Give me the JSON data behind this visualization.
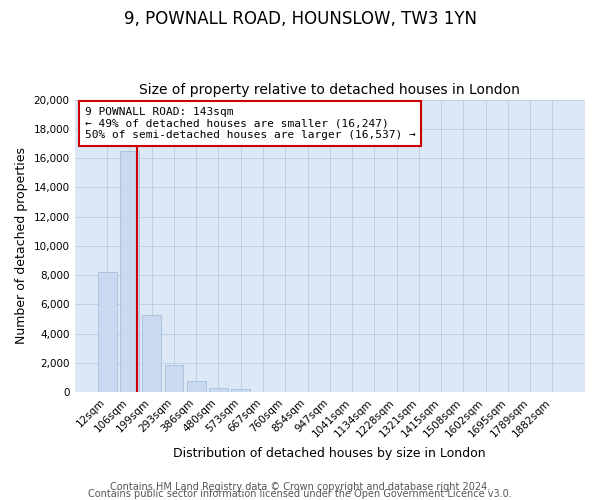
{
  "title": "9, POWNALL ROAD, HOUNSLOW, TW3 1YN",
  "subtitle": "Size of property relative to detached houses in London",
  "xlabel": "Distribution of detached houses by size in London",
  "ylabel": "Number of detached properties",
  "categories": [
    "12sqm",
    "106sqm",
    "199sqm",
    "293sqm",
    "386sqm",
    "480sqm",
    "573sqm",
    "667sqm",
    "760sqm",
    "854sqm",
    "947sqm",
    "1041sqm",
    "1134sqm",
    "1228sqm",
    "1321sqm",
    "1415sqm",
    "1508sqm",
    "1602sqm",
    "1695sqm",
    "1789sqm",
    "1882sqm"
  ],
  "bar_heights": [
    8200,
    16500,
    5300,
    1850,
    750,
    300,
    200,
    0,
    0,
    0,
    0,
    0,
    0,
    0,
    0,
    0,
    0,
    0,
    0,
    0,
    0
  ],
  "bar_color": "#c8d9f0",
  "bar_edge_color": "#a0b8d8",
  "vline_color": "#cc0000",
  "annotation_text": "9 POWNALL ROAD: 143sqm\n← 49% of detached houses are smaller (16,247)\n50% of semi-detached houses are larger (16,537) →",
  "annotation_box_color": "#ffffff",
  "annotation_box_edge": "#cc0000",
  "ylim": [
    0,
    20000
  ],
  "yticks": [
    0,
    2000,
    4000,
    6000,
    8000,
    10000,
    12000,
    14000,
    16000,
    18000,
    20000
  ],
  "footer1": "Contains HM Land Registry data © Crown copyright and database right 2024.",
  "footer2": "Contains public sector information licensed under the Open Government Licence v3.0.",
  "background_color": "#ffffff",
  "plot_bg_color": "#dce8f5",
  "grid_color": "#b8cde0",
  "title_fontsize": 12,
  "subtitle_fontsize": 10,
  "axis_label_fontsize": 9,
  "tick_fontsize": 7.5,
  "footer_fontsize": 7,
  "annotation_fontsize": 8
}
